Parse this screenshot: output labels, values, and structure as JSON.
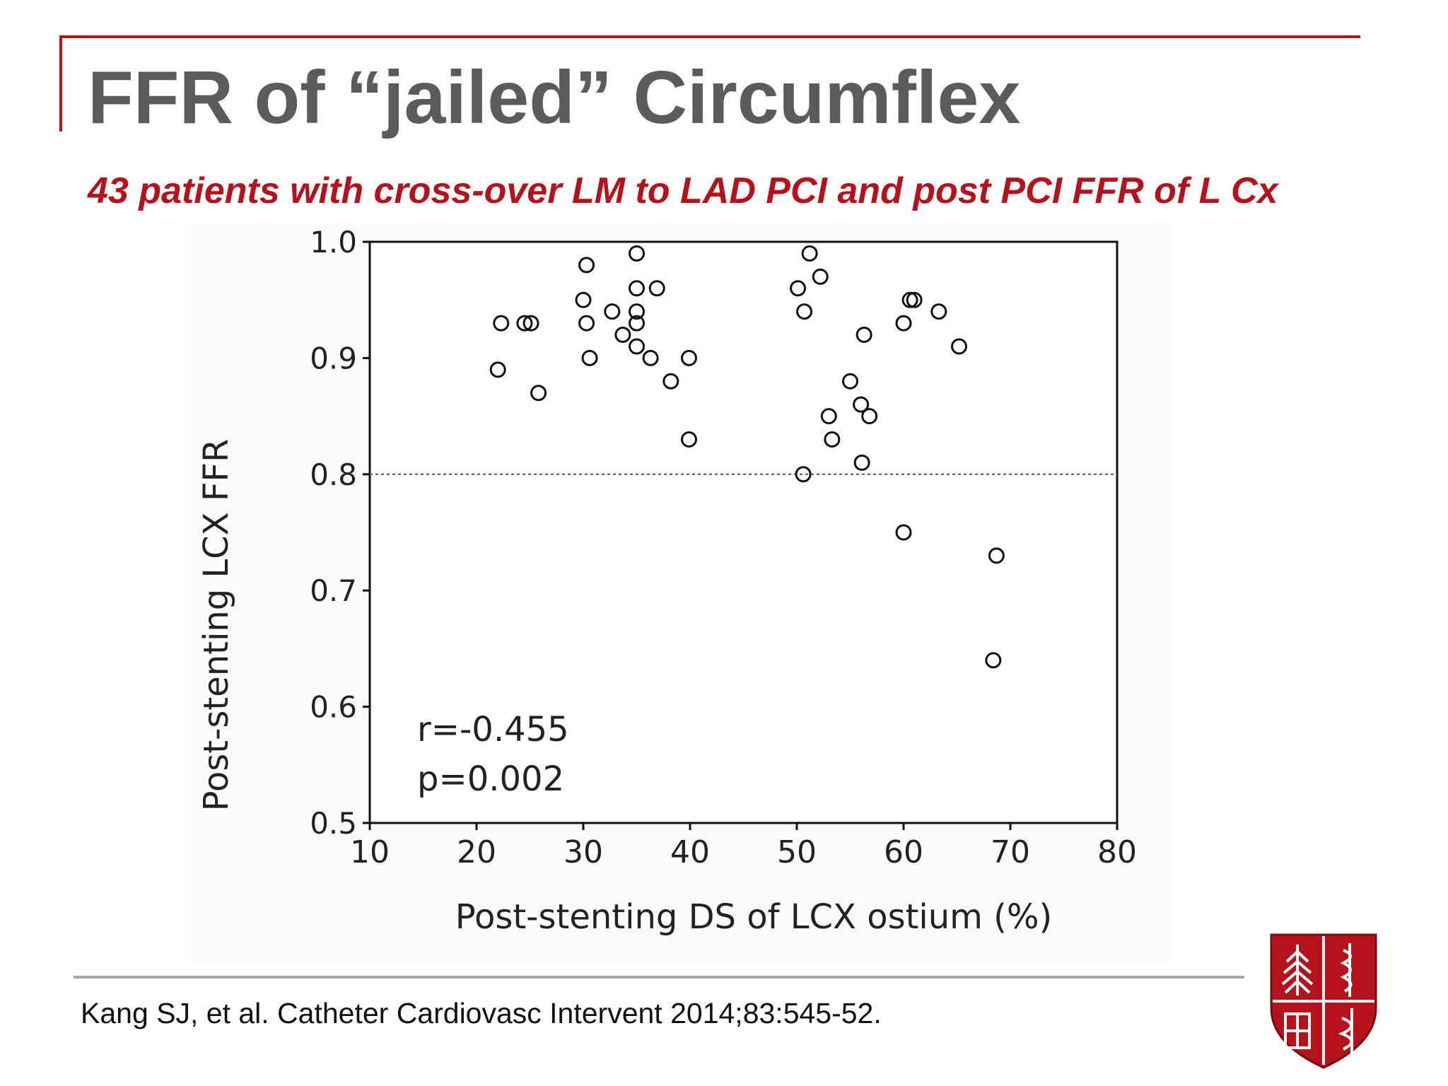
{
  "slide": {
    "title": "FFR of “jailed” Circumflex",
    "subtitle": "43 patients with cross-over LM to LAD PCI and post PCI FFR of L Cx",
    "citation": "Kang SJ, et al. Catheter Cardiovasc Intervent 2014;83:545-52.",
    "accent_color": "#b5121b",
    "title_color": "#5b5b5b"
  },
  "logo": {
    "icon": "university-shield-icon"
  },
  "chart_data": {
    "type": "scatter",
    "xlabel": "Post-stenting DS of LCX ostium (%)",
    "ylabel": "Post-stenting LCX FFR",
    "xlim": [
      10,
      80
    ],
    "ylim": [
      0.5,
      1.0
    ],
    "x_ticks": [
      "10",
      "20",
      "30",
      "40",
      "50",
      "60",
      "70",
      "80"
    ],
    "y_ticks": [
      "0.5",
      "0.6",
      "0.7",
      "0.8",
      "0.9",
      "1.0"
    ],
    "reference_line": {
      "y": 0.8,
      "style": "dotted"
    },
    "annotations": [
      "r=-0.455",
      "p=0.002"
    ],
    "grid": false,
    "points": [
      {
        "x": 22.3,
        "y": 0.93
      },
      {
        "x": 24.5,
        "y": 0.93
      },
      {
        "x": 25.1,
        "y": 0.93
      },
      {
        "x": 22.0,
        "y": 0.89
      },
      {
        "x": 25.8,
        "y": 0.87
      },
      {
        "x": 30.3,
        "y": 0.98
      },
      {
        "x": 30.0,
        "y": 0.95
      },
      {
        "x": 30.3,
        "y": 0.93
      },
      {
        "x": 30.6,
        "y": 0.9
      },
      {
        "x": 32.7,
        "y": 0.94
      },
      {
        "x": 33.7,
        "y": 0.92
      },
      {
        "x": 35.0,
        "y": 0.99
      },
      {
        "x": 35.0,
        "y": 0.96
      },
      {
        "x": 35.0,
        "y": 0.94
      },
      {
        "x": 35.0,
        "y": 0.93
      },
      {
        "x": 35.0,
        "y": 0.91
      },
      {
        "x": 36.3,
        "y": 0.9
      },
      {
        "x": 36.9,
        "y": 0.96
      },
      {
        "x": 38.2,
        "y": 0.88
      },
      {
        "x": 39.9,
        "y": 0.9
      },
      {
        "x": 39.9,
        "y": 0.83
      },
      {
        "x": 50.1,
        "y": 0.96
      },
      {
        "x": 50.7,
        "y": 0.94
      },
      {
        "x": 51.2,
        "y": 0.99
      },
      {
        "x": 52.2,
        "y": 0.97
      },
      {
        "x": 50.6,
        "y": 0.8
      },
      {
        "x": 53.0,
        "y": 0.85
      },
      {
        "x": 53.3,
        "y": 0.83
      },
      {
        "x": 55.0,
        "y": 0.88
      },
      {
        "x": 56.0,
        "y": 0.86
      },
      {
        "x": 56.3,
        "y": 0.92
      },
      {
        "x": 56.8,
        "y": 0.85
      },
      {
        "x": 56.1,
        "y": 0.81
      },
      {
        "x": 60.0,
        "y": 0.93
      },
      {
        "x": 60.6,
        "y": 0.95
      },
      {
        "x": 61.0,
        "y": 0.95
      },
      {
        "x": 63.3,
        "y": 0.94
      },
      {
        "x": 65.2,
        "y": 0.91
      },
      {
        "x": 60.0,
        "y": 0.75
      },
      {
        "x": 68.7,
        "y": 0.73
      },
      {
        "x": 68.4,
        "y": 0.64
      }
    ]
  }
}
